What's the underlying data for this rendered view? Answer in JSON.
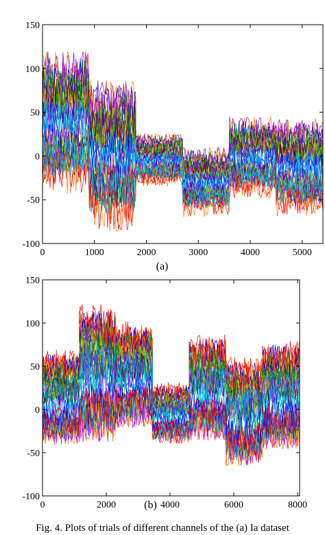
{
  "caption": "Fig. 4. Plots of trials of different channels of the (a) Ia dataset",
  "chart_data": [
    {
      "type": "line",
      "panel_label": "(a)",
      "xlim": [
        0,
        5400
      ],
      "ylim": [
        -100,
        150
      ],
      "xticks": [
        0,
        1000,
        2000,
        3000,
        4000,
        5000
      ],
      "yticks": [
        -100,
        -50,
        0,
        50,
        100,
        150
      ],
      "xtick_labels": [
        "0",
        "1000",
        "2000",
        "3000",
        "4000",
        "5000"
      ],
      "ytick_labels": [
        "-100",
        "-50",
        "0",
        "50",
        "100",
        "150"
      ],
      "grid": false,
      "series_count": 64,
      "segments": [
        {
          "x_start": 0,
          "x_end": 900,
          "envelope_low": -50,
          "envelope_high": 125,
          "center": 35
        },
        {
          "x_start": 900,
          "x_end": 1800,
          "envelope_low": -92,
          "envelope_high": 92,
          "center": -15
        },
        {
          "x_start": 1800,
          "x_end": 2700,
          "envelope_low": -37,
          "envelope_high": 28,
          "center": -5
        },
        {
          "x_start": 2700,
          "x_end": 3600,
          "envelope_low": -72,
          "envelope_high": 13,
          "center": -25
        },
        {
          "x_start": 3600,
          "x_end": 4500,
          "envelope_low": -52,
          "envelope_high": 48,
          "center": -15
        },
        {
          "x_start": 4500,
          "x_end": 5400,
          "envelope_low": -72,
          "envelope_high": 46,
          "center": -5
        }
      ]
    },
    {
      "type": "line",
      "panel_label": "(b)",
      "xlim": [
        0,
        8064
      ],
      "ylim": [
        -100,
        150
      ],
      "xticks": [
        0,
        2000,
        4000,
        6000,
        8000
      ],
      "yticks": [
        -100,
        -50,
        0,
        50,
        100,
        150
      ],
      "xtick_labels": [
        "0",
        "2000",
        "4000",
        "6000",
        "8000"
      ],
      "ytick_labels": [
        "-100",
        "-50",
        "0",
        "50",
        "100",
        "150"
      ],
      "grid": false,
      "series_count": 64,
      "segments": [
        {
          "x_start": 0,
          "x_end": 1150,
          "envelope_low": -45,
          "envelope_high": 75,
          "center": 15
        },
        {
          "x_start": 1150,
          "x_end": 2300,
          "envelope_low": -42,
          "envelope_high": 130,
          "center": 30
        },
        {
          "x_start": 2300,
          "x_end": 3450,
          "envelope_low": -25,
          "envelope_high": 108,
          "center": 30
        },
        {
          "x_start": 3450,
          "x_end": 4600,
          "envelope_low": -42,
          "envelope_high": 35,
          "center": 0
        },
        {
          "x_start": 4600,
          "x_end": 5750,
          "envelope_low": -40,
          "envelope_high": 95,
          "center": 20
        },
        {
          "x_start": 5750,
          "x_end": 6900,
          "envelope_low": -70,
          "envelope_high": 68,
          "center": -15
        },
        {
          "x_start": 6900,
          "x_end": 8064,
          "envelope_low": -50,
          "envelope_high": 88,
          "center": 10
        }
      ]
    }
  ],
  "colors": [
    "#0000ff",
    "#ff0000",
    "#00aa00",
    "#00cccc",
    "#cc00cc",
    "#cccc00",
    "#222222",
    "#0088ff",
    "#ff7700",
    "#7700cc"
  ]
}
